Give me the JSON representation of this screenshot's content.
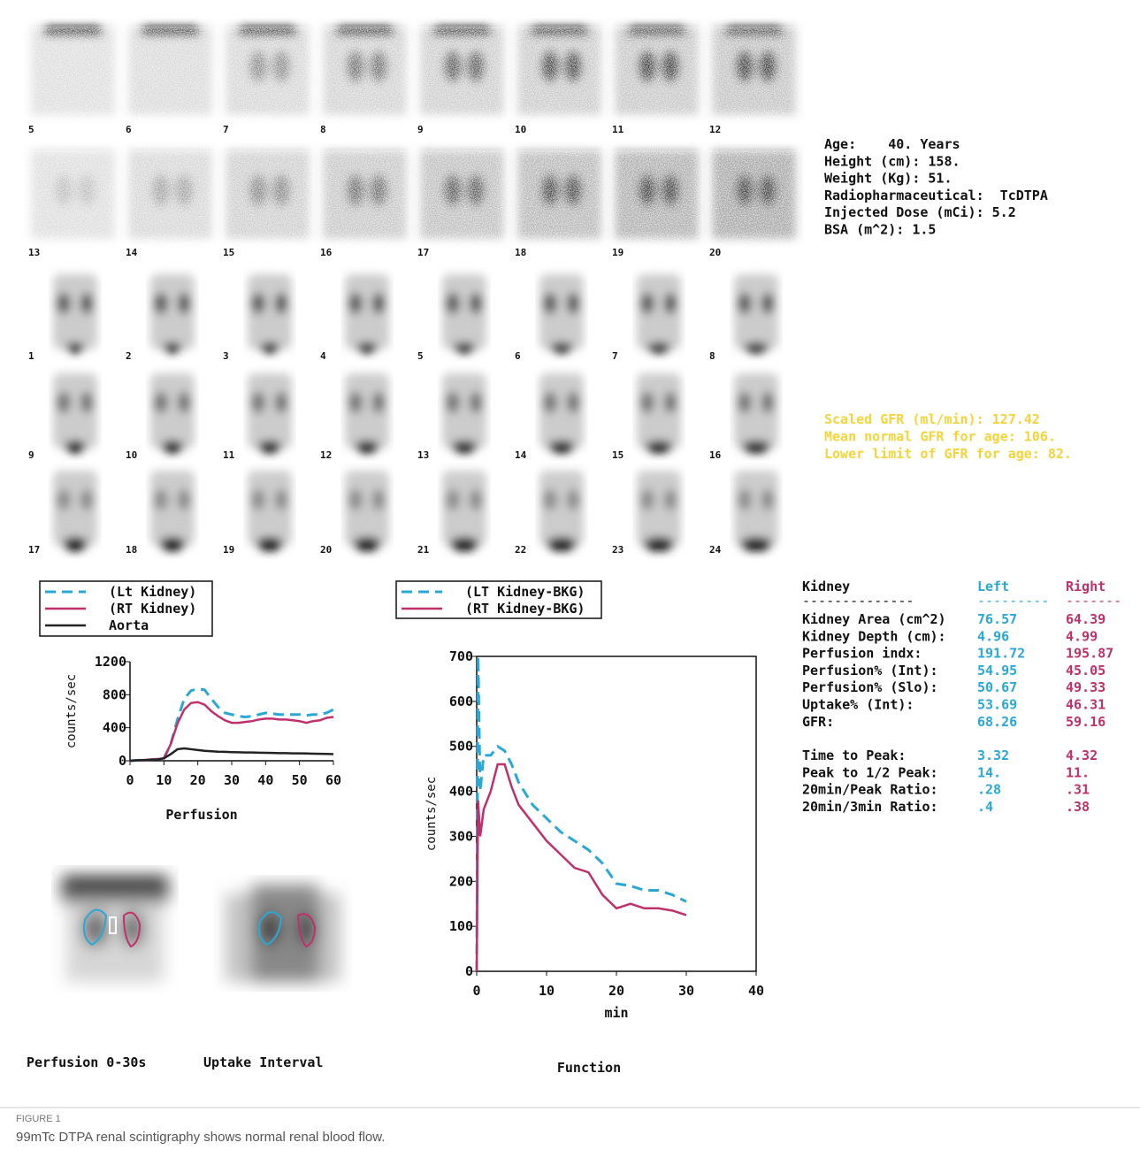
{
  "frames": [
    [
      5,
      6,
      7,
      8,
      9,
      10,
      11,
      12
    ],
    [
      13,
      14,
      15,
      16,
      17,
      18,
      19,
      20
    ],
    [
      1,
      2,
      3,
      4,
      5,
      6,
      7,
      8
    ],
    [
      9,
      10,
      11,
      12,
      13,
      14,
      15,
      16
    ],
    [
      17,
      18,
      19,
      20,
      21,
      22,
      23,
      24
    ]
  ],
  "patient_info": [
    "Age:    40. Years",
    "Height (cm): 158.",
    "Weight (Kg): 51.",
    "Radiopharmaceutical:  TcDTPA",
    "Injected Dose (mCi): 5.2",
    "BSA (m^2): 1.5"
  ],
  "gfr_info": [
    "Scaled GFR (ml/min): 127.42",
    "Mean normal GFR for age: 106.",
    "Lower limit of GFR for age: 82."
  ],
  "kidney_table": {
    "header": [
      "Kidney",
      "Left",
      "Right"
    ],
    "separator": [
      "--------------",
      "---------",
      "-------"
    ],
    "rows": [
      [
        "Kidney Area (cm^2)",
        "76.57",
        "64.39"
      ],
      [
        "Kidney Depth (cm):",
        "4.96",
        "4.99"
      ],
      [
        "Perfusion indx:",
        "191.72",
        "195.87"
      ],
      [
        "Perfusion% (Int):",
        "54.95",
        "45.05"
      ],
      [
        "Perfusion% (Slo):",
        "50.67",
        "49.33"
      ],
      [
        "Uptake% (Int):",
        "53.69",
        "46.31"
      ],
      [
        "GFR:",
        "68.26",
        "59.16"
      ]
    ],
    "rows2": [
      [
        "Time to Peak:",
        "3.32",
        "4.32"
      ],
      [
        "Peak to 1/2 Peak:",
        "14.",
        "11."
      ],
      [
        "20min/Peak Ratio:",
        ".28",
        ".31"
      ],
      [
        "20min/3min Ratio:",
        ".4",
        ".38"
      ]
    ]
  },
  "image_labels": [
    "Perfusion 0-30s",
    "Uptake Interval"
  ],
  "caption": {
    "label": "FIGURE 1",
    "text": "99mTc DTPA renal scintigraphy shows normal renal blood flow."
  },
  "chart_data": [
    {
      "type": "line",
      "title": "Perfusion",
      "ylabel": "counts/sec",
      "x": [
        0,
        2,
        4,
        6,
        8,
        10,
        12,
        14,
        16,
        18,
        20,
        22,
        24,
        26,
        28,
        30,
        32,
        34,
        36,
        38,
        40,
        42,
        44,
        46,
        48,
        50,
        52,
        54,
        56,
        58,
        60
      ],
      "xlim": [
        0,
        60
      ],
      "ylim": [
        0,
        1200
      ],
      "xticks": [
        0,
        10,
        20,
        30,
        40,
        50,
        60
      ],
      "yticks": [
        0,
        400,
        800,
        1200
      ],
      "series": [
        {
          "name": "(Lt Kidney)",
          "color": "#29a8d8",
          "dash": true,
          "values": [
            0,
            5,
            10,
            15,
            20,
            30,
            200,
            500,
            750,
            850,
            870,
            860,
            750,
            650,
            580,
            560,
            540,
            530,
            540,
            560,
            580,
            570,
            560,
            560,
            560,
            560,
            550,
            560,
            560,
            580,
            620
          ]
        },
        {
          "name": "(RT Kidney)",
          "color": "#c0306a",
          "dash": false,
          "values": [
            0,
            5,
            10,
            15,
            20,
            30,
            200,
            450,
            620,
            700,
            710,
            680,
            600,
            540,
            490,
            460,
            460,
            470,
            480,
            500,
            510,
            510,
            500,
            500,
            490,
            480,
            460,
            480,
            490,
            520,
            530
          ]
        },
        {
          "name": "Aorta",
          "color": "#222222",
          "dash": false,
          "values": [
            0,
            5,
            8,
            10,
            15,
            30,
            80,
            140,
            150,
            140,
            130,
            120,
            115,
            110,
            108,
            105,
            103,
            100,
            100,
            98,
            97,
            95,
            93,
            92,
            90,
            90,
            88,
            86,
            85,
            83,
            80
          ]
        }
      ]
    },
    {
      "type": "line",
      "title": "Function",
      "xlabel": "min",
      "ylabel": "counts/sec",
      "x": [
        0,
        0.2,
        0.5,
        1,
        2,
        3,
        4,
        5,
        6,
        8,
        10,
        12,
        14,
        16,
        18,
        20,
        22,
        24,
        26,
        28,
        30
      ],
      "xlim": [
        0,
        40
      ],
      "ylim": [
        0,
        700
      ],
      "xticks": [
        0,
        10,
        20,
        30,
        40
      ],
      "yticks": [
        0,
        100,
        200,
        300,
        400,
        500,
        600,
        700
      ],
      "series": [
        {
          "name": "(LT Kidney-BKG)",
          "color": "#29a8d8",
          "dash": true,
          "values": [
            0,
            700,
            400,
            480,
            480,
            500,
            490,
            460,
            420,
            370,
            340,
            310,
            290,
            270,
            240,
            195,
            190,
            180,
            180,
            170,
            155
          ]
        },
        {
          "name": "(RT Kidney-BKG)",
          "color": "#c0306a",
          "dash": false,
          "values": [
            0,
            380,
            300,
            360,
            400,
            460,
            460,
            410,
            370,
            330,
            290,
            260,
            230,
            220,
            170,
            140,
            150,
            140,
            140,
            135,
            125
          ]
        }
      ]
    }
  ]
}
